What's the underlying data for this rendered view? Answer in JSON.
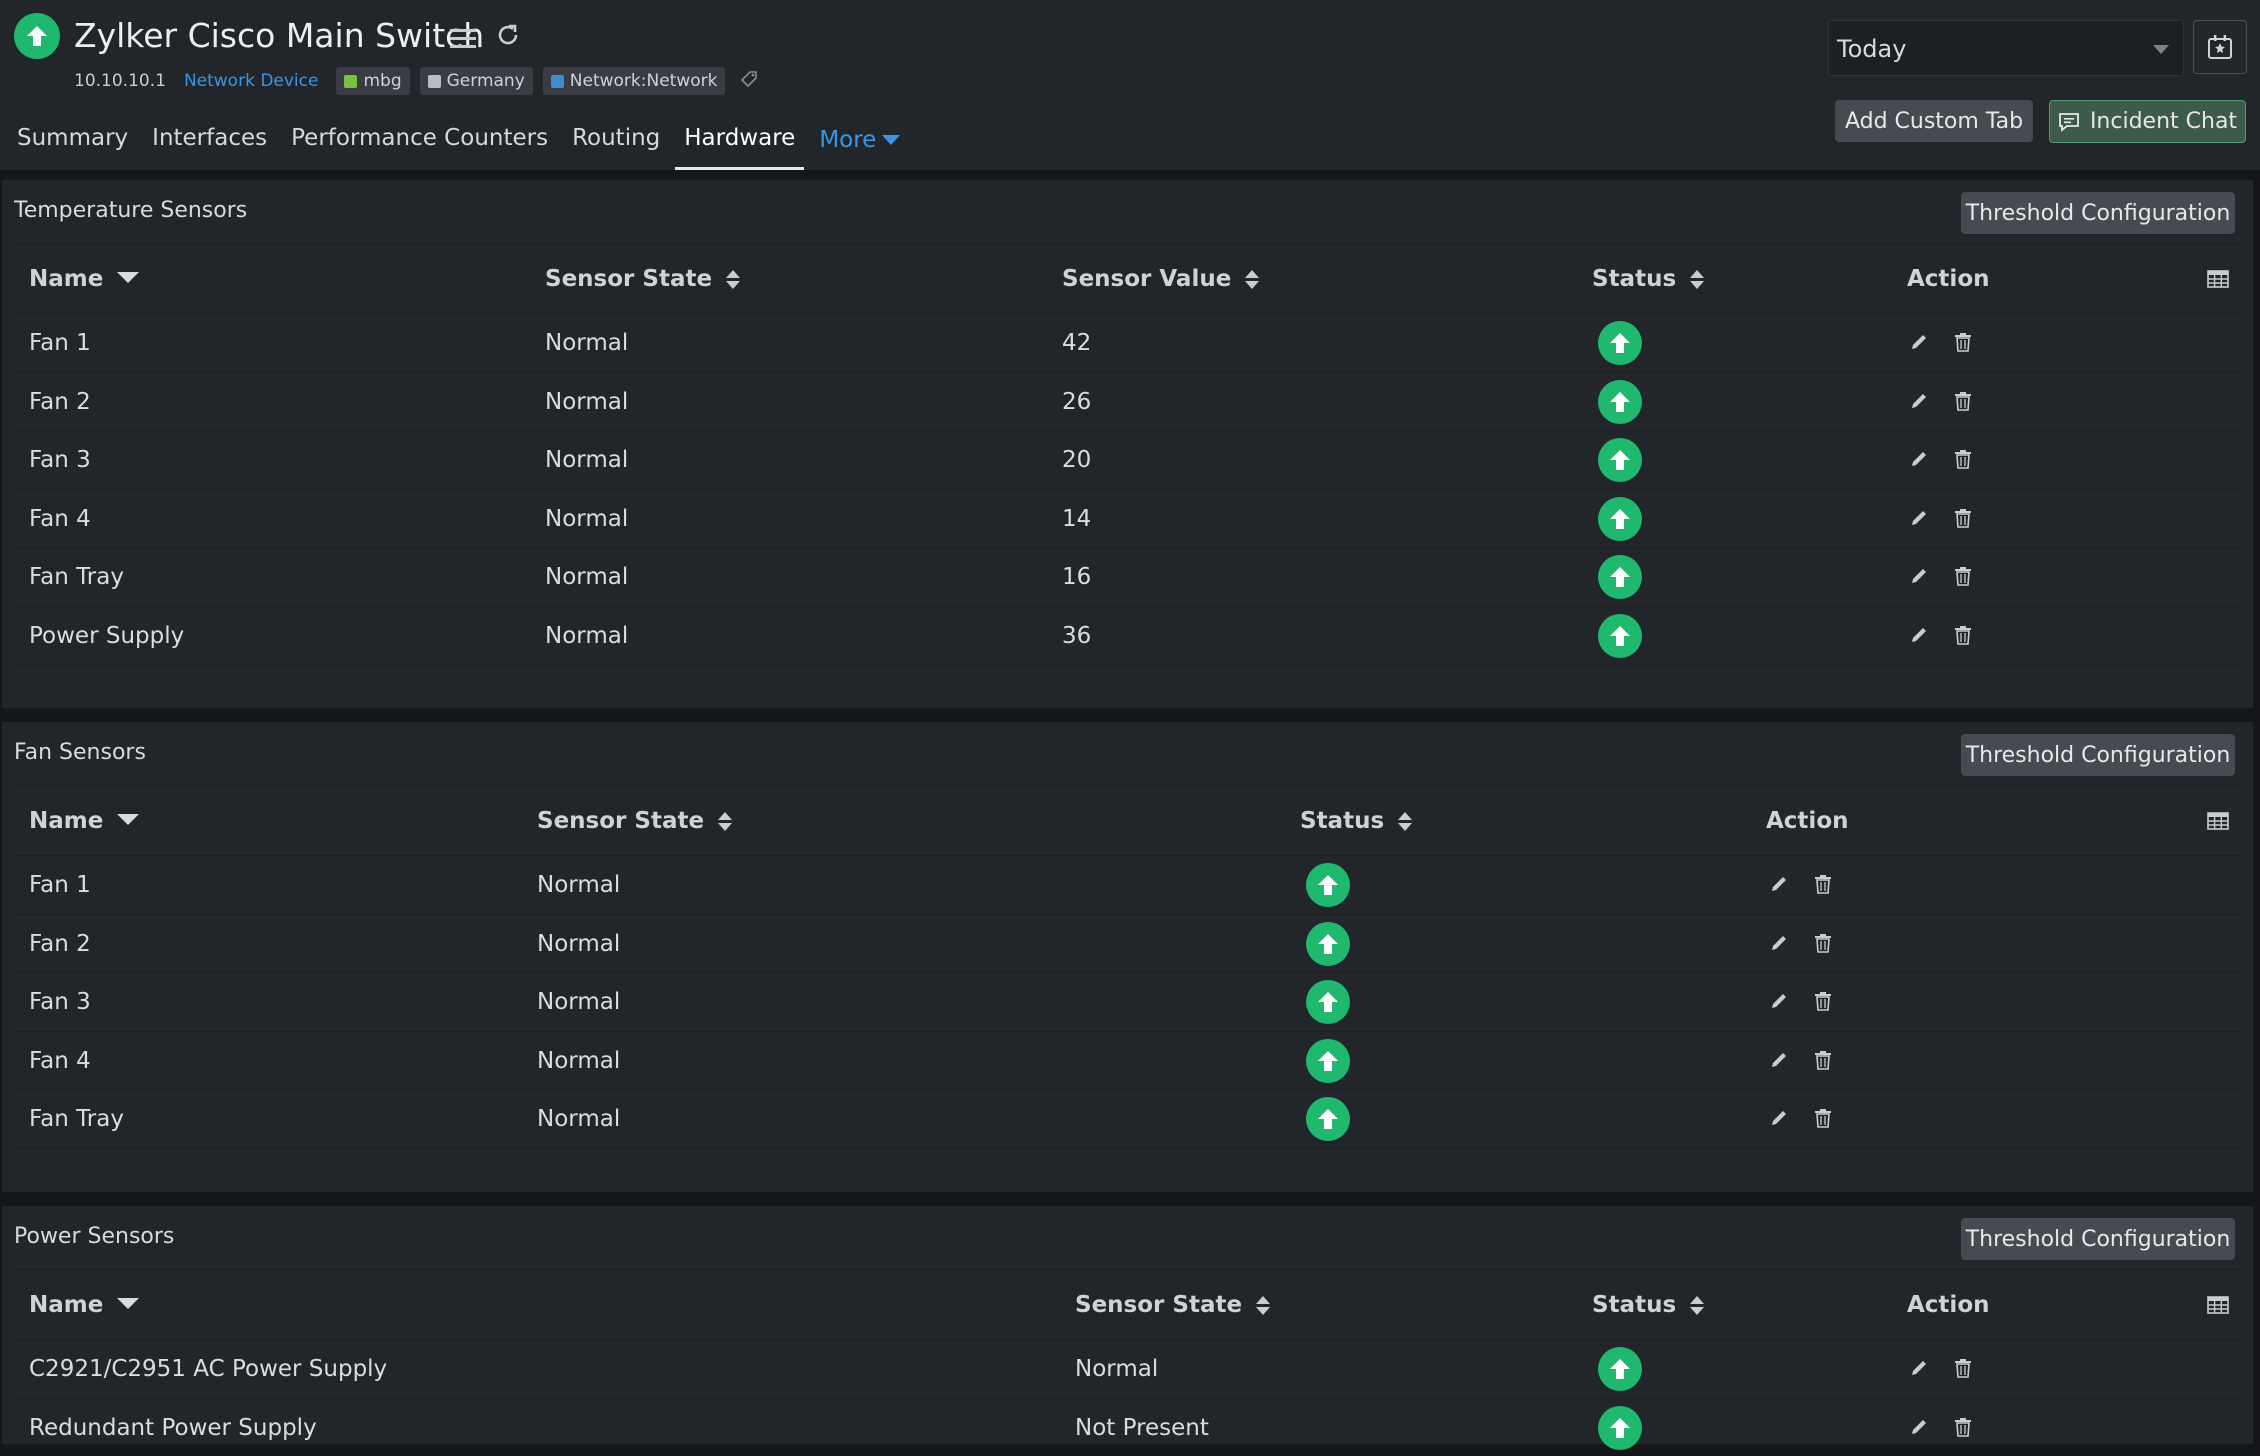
{
  "device": {
    "title": "Zylker Cisco Main Switch",
    "ip": "10.10.10.1",
    "type": "Network Device",
    "status": "up",
    "tags": [
      {
        "label": "mbg",
        "color": "#7ac142"
      },
      {
        "label": "Germany",
        "color": "#b9bcc0"
      },
      {
        "label": "Network:Network",
        "color": "#3a8fd1"
      }
    ]
  },
  "tabs": [
    {
      "label": "Summary"
    },
    {
      "label": "Interfaces"
    },
    {
      "label": "Performance Counters"
    },
    {
      "label": "Routing"
    },
    {
      "label": "Hardware",
      "active": true
    },
    {
      "label": "More"
    }
  ],
  "period": {
    "selected": "Today"
  },
  "buttons": {
    "add_custom_tab": "Add Custom Tab",
    "incident_chat": "Incident Chat",
    "threshold_config": "Threshold Configuration"
  },
  "colors": {
    "status_up": "#1fb86e",
    "link": "#3b95e6"
  },
  "temperature": {
    "title": "Temperature Sensors",
    "columns": [
      "Name",
      "Sensor State",
      "Sensor Value",
      "Status",
      "Action"
    ],
    "rows": [
      {
        "name": "Fan 1",
        "state": "Normal",
        "value": "42",
        "status": "up"
      },
      {
        "name": "Fan 2",
        "state": "Normal",
        "value": "26",
        "status": "up"
      },
      {
        "name": "Fan 3",
        "state": "Normal",
        "value": "20",
        "status": "up"
      },
      {
        "name": "Fan 4",
        "state": "Normal",
        "value": "14",
        "status": "up"
      },
      {
        "name": "Fan Tray",
        "state": "Normal",
        "value": "16",
        "status": "up"
      },
      {
        "name": "Power Supply",
        "state": "Normal",
        "value": "36",
        "status": "up"
      }
    ]
  },
  "fan": {
    "title": "Fan Sensors",
    "columns": [
      "Name",
      "Sensor State",
      "Status",
      "Action"
    ],
    "rows": [
      {
        "name": "Fan 1",
        "state": "Normal",
        "status": "up"
      },
      {
        "name": "Fan 2",
        "state": "Normal",
        "status": "up"
      },
      {
        "name": "Fan 3",
        "state": "Normal",
        "status": "up"
      },
      {
        "name": "Fan 4",
        "state": "Normal",
        "status": "up"
      },
      {
        "name": "Fan Tray",
        "state": "Normal",
        "status": "up"
      }
    ]
  },
  "power": {
    "title": "Power Sensors",
    "columns": [
      "Name",
      "Sensor State",
      "Status",
      "Action"
    ],
    "rows": [
      {
        "name": "C2921/C2951 AC Power Supply",
        "state": "Normal",
        "status": "up"
      },
      {
        "name": "Redundant Power Supply",
        "state": "Not Present",
        "status": "up"
      }
    ]
  }
}
